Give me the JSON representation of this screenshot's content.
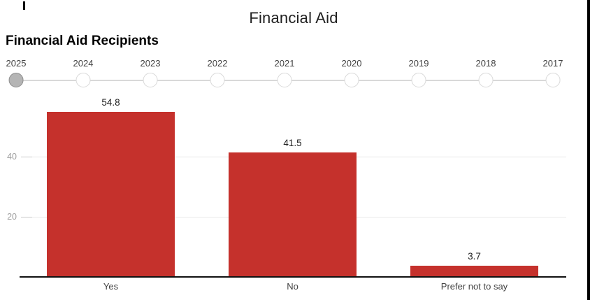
{
  "header": {
    "title": "Financial Aid",
    "chart_title": "Financial Aid Recipients"
  },
  "timeline": {
    "years": [
      "2025",
      "2024",
      "2023",
      "2022",
      "2021",
      "2020",
      "2019",
      "2018",
      "2017"
    ],
    "selected_year": "2025"
  },
  "chart_data": {
    "type": "bar",
    "title": "Financial Aid Recipients",
    "categories": [
      "Yes",
      "No",
      "Prefer not to say"
    ],
    "values": [
      54.8,
      41.5,
      3.7
    ],
    "value_labels": [
      "54.8",
      "41.5",
      "3.7"
    ],
    "xlabel": "",
    "ylabel": "",
    "ylim": [
      0,
      61
    ],
    "yticks": [
      20,
      40
    ],
    "grid": true,
    "legend": false,
    "bar_color": "#c5312c"
  },
  "colors": {
    "bar": "#c5312c",
    "title_text": "#212121",
    "axis_line": "#111111",
    "gridline": "#e8e8e8",
    "ytick_text": "#9e9e9e",
    "timeline_line": "#d9d9d9",
    "selected_dot_fill": "#b5b5b5",
    "selected_dot_border": "#8c8c8c",
    "window_border": "#000000"
  }
}
